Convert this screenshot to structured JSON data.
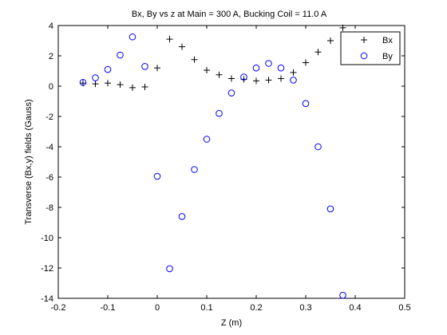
{
  "chart_data": {
    "type": "scatter",
    "title": "Bx, By vs z at Main = 300 A, Bucking Coil = 11.0 A",
    "xlabel": "Z (m)",
    "ylabel": "Transverse (Bx,y) fields  (Gauss)",
    "xlim": [
      -0.2,
      0.5
    ],
    "ylim": [
      -14,
      4
    ],
    "xticks": [
      -0.2,
      -0.1,
      0,
      0.1,
      0.2,
      0.3,
      0.4,
      0.5
    ],
    "xtick_labels": [
      "-0.2",
      "-0.1",
      "0",
      "0.1",
      "0.2",
      "0.3",
      "0.4",
      "0.5"
    ],
    "yticks": [
      -14,
      -12,
      -10,
      -8,
      -6,
      -4,
      -2,
      0,
      2,
      4
    ],
    "ytick_labels": [
      "-14",
      "-12",
      "-10",
      "-8",
      "-6",
      "-4",
      "-2",
      "0",
      "2",
      "4"
    ],
    "grid": false,
    "legend_position": "top-right",
    "series": [
      {
        "name": "Bx",
        "marker": "plus",
        "color": "#000000",
        "x": [
          -0.15,
          -0.125,
          -0.1,
          -0.075,
          -0.05,
          -0.025,
          0.0,
          0.025,
          0.05,
          0.075,
          0.1,
          0.125,
          0.15,
          0.175,
          0.2,
          0.225,
          0.25,
          0.275,
          0.3,
          0.325,
          0.35,
          0.375
        ],
        "y": [
          0.2,
          0.15,
          0.2,
          0.1,
          -0.1,
          -0.05,
          1.2,
          3.1,
          2.6,
          1.75,
          1.05,
          0.75,
          0.5,
          0.45,
          0.35,
          0.4,
          0.5,
          0.9,
          1.55,
          2.25,
          3.0,
          3.85
        ]
      },
      {
        "name": "By",
        "marker": "circle",
        "color": "#0000ff",
        "x": [
          -0.15,
          -0.125,
          -0.1,
          -0.075,
          -0.05,
          -0.025,
          0.0,
          0.025,
          0.05,
          0.075,
          0.1,
          0.125,
          0.15,
          0.175,
          0.2,
          0.225,
          0.25,
          0.275,
          0.3,
          0.325,
          0.35,
          0.375
        ],
        "y": [
          0.25,
          0.55,
          1.1,
          2.05,
          3.25,
          1.3,
          -5.95,
          -12.05,
          -8.6,
          -5.5,
          -3.5,
          -1.8,
          -0.45,
          0.6,
          1.2,
          1.5,
          1.2,
          0.4,
          -1.15,
          -4.0,
          -8.1,
          -13.8
        ]
      }
    ]
  }
}
